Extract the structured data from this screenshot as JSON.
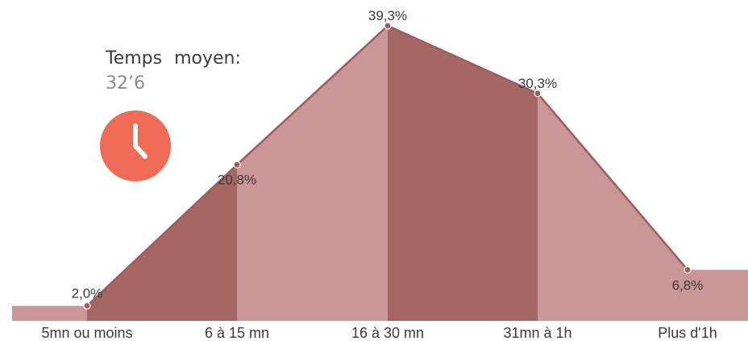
{
  "average": {
    "title": "Temps moyen:",
    "value": "32’6"
  },
  "icon": "clock-icon",
  "colors": {
    "light": "#c99796",
    "dark": "#a56764",
    "line": "#a05b5b",
    "clock": "#ef6b55"
  },
  "chart_data": {
    "type": "area",
    "categories": [
      "5mn ou moins",
      "6 à 15 mn",
      "16 à 30 mn",
      "31mn à 1h",
      "Plus d'1h"
    ],
    "values": [
      2.0,
      20.8,
      39.3,
      30.3,
      6.8
    ],
    "data_labels": [
      "2,0%",
      "20,8%",
      "39,3%",
      "30,3%",
      "6,8%"
    ],
    "ylim": [
      0,
      40
    ],
    "grid": false,
    "legend": "none",
    "title": "",
    "xlabel": "",
    "ylabel": ""
  }
}
